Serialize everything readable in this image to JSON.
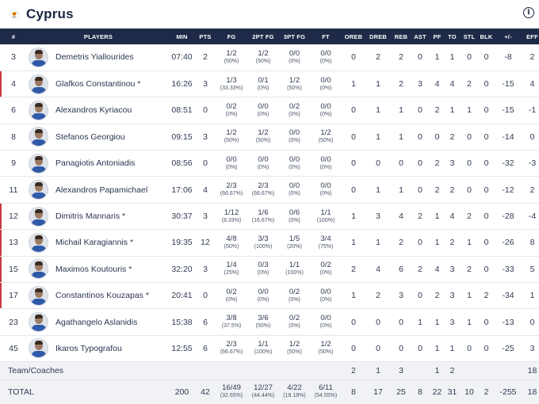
{
  "team": {
    "name": "Cyprus"
  },
  "icons": {
    "flag": "cyprus-flag-icon",
    "info": "info-icon"
  },
  "colors": {
    "header_bg": "#1e2a47",
    "starter_marker": "#c93a3e",
    "flag_copper": "#d57800"
  },
  "columns": [
    "#",
    "PLAYERS",
    "MIN",
    "PTS",
    "FG",
    "2PT FG",
    "3PT FG",
    "FT",
    "OREB",
    "DREB",
    "REB",
    "AST",
    "PF",
    "TO",
    "STL",
    "BLK",
    "+/-",
    "EFF"
  ],
  "players": [
    {
      "num": "3",
      "name": "Demetris Yiallourides",
      "min": "07:40",
      "pts": "2",
      "fg": "1/2",
      "fg_pct": "(50%)",
      "fg2": "1/2",
      "fg2_pct": "(50%)",
      "fg3": "0/0",
      "fg3_pct": "(0%)",
      "ft": "0/0",
      "ft_pct": "(0%)",
      "oreb": "0",
      "dreb": "2",
      "reb": "2",
      "ast": "0",
      "pf": "1",
      "to": "1",
      "stl": "0",
      "blk": "0",
      "pm": "-8",
      "eff": "2"
    },
    {
      "num": "4",
      "name": "Glafkos Constantinou *",
      "min": "16:26",
      "pts": "3",
      "fg": "1/3",
      "fg_pct": "(33.33%)",
      "fg2": "0/1",
      "fg2_pct": "(0%)",
      "fg3": "1/2",
      "fg3_pct": "(50%)",
      "ft": "0/0",
      "ft_pct": "(0%)",
      "oreb": "1",
      "dreb": "1",
      "reb": "2",
      "ast": "3",
      "pf": "4",
      "to": "4",
      "stl": "2",
      "blk": "0",
      "pm": "-15",
      "eff": "4"
    },
    {
      "num": "6",
      "name": "Alexandros Kyriacou",
      "min": "08:51",
      "pts": "0",
      "fg": "0/2",
      "fg_pct": "(0%)",
      "fg2": "0/0",
      "fg2_pct": "(0%)",
      "fg3": "0/2",
      "fg3_pct": "(0%)",
      "ft": "0/0",
      "ft_pct": "(0%)",
      "oreb": "0",
      "dreb": "1",
      "reb": "1",
      "ast": "0",
      "pf": "2",
      "to": "1",
      "stl": "1",
      "blk": "0",
      "pm": "-15",
      "eff": "-1"
    },
    {
      "num": "8",
      "name": "Stefanos Georgiou",
      "min": "09:15",
      "pts": "3",
      "fg": "1/2",
      "fg_pct": "(50%)",
      "fg2": "1/2",
      "fg2_pct": "(50%)",
      "fg3": "0/0",
      "fg3_pct": "(0%)",
      "ft": "1/2",
      "ft_pct": "(50%)",
      "oreb": "0",
      "dreb": "1",
      "reb": "1",
      "ast": "0",
      "pf": "0",
      "to": "2",
      "stl": "0",
      "blk": "0",
      "pm": "-14",
      "eff": "0"
    },
    {
      "num": "9",
      "name": "Panagiotis Antoniadis",
      "min": "08:56",
      "pts": "0",
      "fg": "0/0",
      "fg_pct": "(0%)",
      "fg2": "0/0",
      "fg2_pct": "(0%)",
      "fg3": "0/0",
      "fg3_pct": "(0%)",
      "ft": "0/0",
      "ft_pct": "(0%)",
      "oreb": "0",
      "dreb": "0",
      "reb": "0",
      "ast": "0",
      "pf": "2",
      "to": "3",
      "stl": "0",
      "blk": "0",
      "pm": "-32",
      "eff": "-3"
    },
    {
      "num": "11",
      "name": "Alexandros Papamichael",
      "min": "17:06",
      "pts": "4",
      "fg": "2/3",
      "fg_pct": "(66.67%)",
      "fg2": "2/3",
      "fg2_pct": "(66.67%)",
      "fg3": "0/0",
      "fg3_pct": "(0%)",
      "ft": "0/0",
      "ft_pct": "(0%)",
      "oreb": "0",
      "dreb": "1",
      "reb": "1",
      "ast": "0",
      "pf": "2",
      "to": "2",
      "stl": "0",
      "blk": "0",
      "pm": "-12",
      "eff": "2"
    },
    {
      "num": "12",
      "name": "Dimitris Mannaris *",
      "min": "30:37",
      "pts": "3",
      "fg": "1/12",
      "fg_pct": "(8.33%)",
      "fg2": "1/6",
      "fg2_pct": "(16.67%)",
      "fg3": "0/6",
      "fg3_pct": "(0%)",
      "ft": "1/1",
      "ft_pct": "(100%)",
      "oreb": "1",
      "dreb": "3",
      "reb": "4",
      "ast": "2",
      "pf": "1",
      "to": "4",
      "stl": "2",
      "blk": "0",
      "pm": "-28",
      "eff": "-4"
    },
    {
      "num": "13",
      "name": "Michail Karagiannis *",
      "min": "19:35",
      "pts": "12",
      "fg": "4/8",
      "fg_pct": "(50%)",
      "fg2": "3/3",
      "fg2_pct": "(100%)",
      "fg3": "1/5",
      "fg3_pct": "(20%)",
      "ft": "3/4",
      "ft_pct": "(75%)",
      "oreb": "1",
      "dreb": "1",
      "reb": "2",
      "ast": "0",
      "pf": "1",
      "to": "2",
      "stl": "1",
      "blk": "0",
      "pm": "-26",
      "eff": "8"
    },
    {
      "num": "15",
      "name": "Maximos Koutouris *",
      "min": "32:20",
      "pts": "3",
      "fg": "1/4",
      "fg_pct": "(25%)",
      "fg2": "0/3",
      "fg2_pct": "(0%)",
      "fg3": "1/1",
      "fg3_pct": "(100%)",
      "ft": "0/2",
      "ft_pct": "(0%)",
      "oreb": "2",
      "dreb": "4",
      "reb": "6",
      "ast": "2",
      "pf": "4",
      "to": "3",
      "stl": "2",
      "blk": "0",
      "pm": "-33",
      "eff": "5"
    },
    {
      "num": "17",
      "name": "Constantinos Kouzapas *",
      "min": "20:41",
      "pts": "0",
      "fg": "0/2",
      "fg_pct": "(0%)",
      "fg2": "0/0",
      "fg2_pct": "(0%)",
      "fg3": "0/2",
      "fg3_pct": "(0%)",
      "ft": "0/0",
      "ft_pct": "(0%)",
      "oreb": "1",
      "dreb": "2",
      "reb": "3",
      "ast": "0",
      "pf": "2",
      "to": "3",
      "stl": "1",
      "blk": "2",
      "pm": "-34",
      "eff": "1"
    },
    {
      "num": "23",
      "name": "Agathangelo Aslanidis",
      "min": "15:38",
      "pts": "6",
      "fg": "3/8",
      "fg_pct": "(37.5%)",
      "fg2": "3/6",
      "fg2_pct": "(50%)",
      "fg3": "0/2",
      "fg3_pct": "(0%)",
      "ft": "0/0",
      "ft_pct": "(0%)",
      "oreb": "0",
      "dreb": "0",
      "reb": "0",
      "ast": "1",
      "pf": "1",
      "to": "3",
      "stl": "1",
      "blk": "0",
      "pm": "-13",
      "eff": "0"
    },
    {
      "num": "45",
      "name": "Ikaros Typografou",
      "min": "12:55",
      "pts": "6",
      "fg": "2/3",
      "fg_pct": "(66.67%)",
      "fg2": "1/1",
      "fg2_pct": "(100%)",
      "fg3": "1/2",
      "fg3_pct": "(50%)",
      "ft": "1/2",
      "ft_pct": "(50%)",
      "oreb": "0",
      "dreb": "0",
      "reb": "0",
      "ast": "0",
      "pf": "1",
      "to": "1",
      "stl": "0",
      "blk": "0",
      "pm": "-25",
      "eff": "3"
    }
  ],
  "coaches": {
    "label": "Team/Coaches",
    "oreb": "2",
    "dreb": "1",
    "reb": "3",
    "ast": "",
    "pf": "1",
    "to": "2",
    "stl": "",
    "blk": "",
    "pm": "",
    "eff": "18"
  },
  "total": {
    "label": "TOTAL",
    "min": "200",
    "pts": "42",
    "fg": "16/49",
    "fg_pct": "(32.65%)",
    "fg2": "12/27",
    "fg2_pct": "(44.44%)",
    "fg3": "4/22",
    "fg3_pct": "(18.18%)",
    "ft": "6/11",
    "ft_pct": "(54.55%)",
    "oreb": "8",
    "dreb": "17",
    "reb": "25",
    "ast": "8",
    "pf": "22",
    "to": "31",
    "stl": "10",
    "blk": "2",
    "pm": "-255",
    "eff": "18"
  }
}
